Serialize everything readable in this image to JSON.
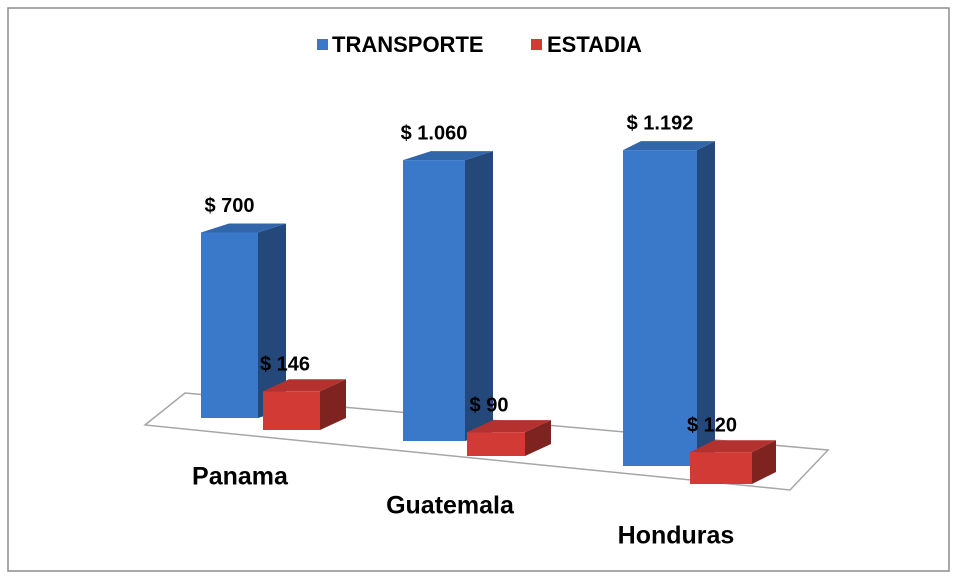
{
  "chart_data": {
    "type": "bar3d",
    "categories": [
      "Panama",
      "Guatemala",
      "Honduras"
    ],
    "series": [
      {
        "name": "TRANSPORTE",
        "color": "#3a78c9",
        "values": [
          700,
          1060,
          1192
        ],
        "value_labels": [
          "$ 700",
          "$ 1.060",
          "$ 1.192"
        ]
      },
      {
        "name": "ESTADIA",
        "color": "#d23a36",
        "values": [
          146,
          90,
          120
        ],
        "value_labels": [
          "$ 146",
          "$ 90",
          "$ 120"
        ]
      }
    ],
    "legend": "top"
  }
}
